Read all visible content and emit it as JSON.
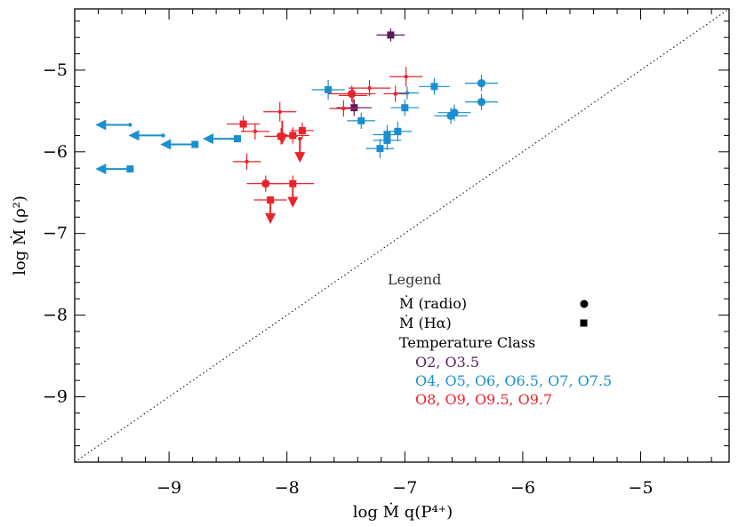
{
  "chart_data": {
    "type": "scatter",
    "title": "",
    "xlabel": "log Ṁ q(P⁴⁺)",
    "ylabel": "log Ṁ (ρ²)",
    "xlim": [
      -9.8,
      -4.25
    ],
    "ylim": [
      -9.8,
      -4.25
    ],
    "x_ticks": [
      -9,
      -8,
      -7,
      -6,
      -5
    ],
    "y_ticks": [
      -9,
      -8,
      -7,
      -6,
      -5
    ],
    "x_tick_labels": [
      "−9",
      "−8",
      "−7",
      "−6",
      "−5"
    ],
    "y_tick_labels": [
      "−9",
      "−8",
      "−7",
      "−6",
      "−5"
    ],
    "reference_line": "1:1",
    "grid": false,
    "colors": {
      "O2-O3.5": "#5a1a5e",
      "O4-O7.5": "#1a8fd0",
      "O8-O9.7": "#e8232c"
    },
    "legend": {
      "title": "Legend",
      "radio_label": "Ṁ (radio)",
      "halpha_label": "Ṁ (Hα)",
      "temperature_title": "Temperature Class",
      "classes": [
        {
          "label": "O2, O3.5",
          "color": "#5a1a5e"
        },
        {
          "label": "O4, O5, O6, O6.5, O7, O7.5",
          "color": "#1a8fd0"
        },
        {
          "label": "O8, O9, O9.5, O9.7",
          "color": "#e8232c"
        }
      ]
    },
    "points": [
      {
        "x": -7.12,
        "y": -4.57,
        "cls": "O2-O3.5",
        "marker": "square",
        "size": "large",
        "xerr": 0.12,
        "yerr": 0.08
      },
      {
        "x": -7.43,
        "y": -5.46,
        "cls": "O2-O3.5",
        "marker": "square",
        "size": "large",
        "xerr": 0.15,
        "yerr": 0.1
      },
      {
        "x": -9.33,
        "y": -5.67,
        "cls": "O4-O7.5",
        "marker": "circle",
        "size": "small",
        "limit": "left"
      },
      {
        "x": -9.05,
        "y": -5.8,
        "cls": "O4-O7.5",
        "marker": "circle",
        "size": "small",
        "limit": "left"
      },
      {
        "x": -8.78,
        "y": -5.91,
        "cls": "O4-O7.5",
        "marker": "square",
        "size": "large",
        "limit": "left"
      },
      {
        "x": -8.42,
        "y": -5.84,
        "cls": "O4-O7.5",
        "marker": "square",
        "size": "large",
        "limit": "left"
      },
      {
        "x": -9.33,
        "y": -6.21,
        "cls": "O4-O7.5",
        "marker": "square",
        "size": "large",
        "limit": "left"
      },
      {
        "x": -7.65,
        "y": -5.24,
        "cls": "O4-O7.5",
        "marker": "square",
        "size": "large",
        "xerr": 0.14,
        "yerr": 0.12
      },
      {
        "x": -7.37,
        "y": -5.62,
        "cls": "O4-O7.5",
        "marker": "square",
        "size": "large",
        "xerr": 0.12,
        "yerr": 0.1
      },
      {
        "x": -7.0,
        "y": -5.46,
        "cls": "O4-O7.5",
        "marker": "square",
        "size": "large",
        "xerr": 0.12,
        "yerr": 0.1
      },
      {
        "x": -6.98,
        "y": -5.28,
        "cls": "O4-O7.5",
        "marker": "circle",
        "size": "small",
        "xerr": 0.1,
        "yerr": 0.08
      },
      {
        "x": -6.75,
        "y": -5.2,
        "cls": "O4-O7.5",
        "marker": "square",
        "size": "large",
        "xerr": 0.13,
        "yerr": 0.1
      },
      {
        "x": -7.06,
        "y": -5.75,
        "cls": "O4-O7.5",
        "marker": "square",
        "size": "large",
        "xerr": 0.12,
        "yerr": 0.12
      },
      {
        "x": -7.15,
        "y": -5.79,
        "cls": "O4-O7.5",
        "marker": "square",
        "size": "large",
        "xerr": 0.12,
        "yerr": 0.12
      },
      {
        "x": -7.15,
        "y": -5.86,
        "cls": "O4-O7.5",
        "marker": "square",
        "size": "large",
        "xerr": 0.12,
        "yerr": 0.12
      },
      {
        "x": -7.21,
        "y": -5.96,
        "cls": "O4-O7.5",
        "marker": "square",
        "size": "large",
        "xerr": 0.12,
        "yerr": 0.12
      },
      {
        "x": -6.35,
        "y": -5.16,
        "cls": "O4-O7.5",
        "marker": "circle",
        "size": "large",
        "xerr": 0.14,
        "yerr": 0.1
      },
      {
        "x": -6.35,
        "y": -5.39,
        "cls": "O4-O7.5",
        "marker": "circle",
        "size": "large",
        "xerr": 0.14,
        "yerr": 0.1
      },
      {
        "x": -6.58,
        "y": -5.52,
        "cls": "O4-O7.5",
        "marker": "circle",
        "size": "large",
        "xerr": 0.14,
        "yerr": 0.1
      },
      {
        "x": -6.61,
        "y": -5.56,
        "cls": "O4-O7.5",
        "marker": "circle",
        "size": "large",
        "xerr": 0.14,
        "yerr": 0.1
      },
      {
        "x": -8.37,
        "y": -5.66,
        "cls": "O8-O9.7",
        "marker": "square",
        "size": "large",
        "xerr": 0.14,
        "yerr": 0.1
      },
      {
        "x": -8.27,
        "y": -5.75,
        "cls": "O8-O9.7",
        "marker": "circle",
        "size": "small",
        "xerr": 0.12,
        "yerr": 0.1
      },
      {
        "x": -8.06,
        "y": -5.51,
        "cls": "O8-O9.7",
        "marker": "circle",
        "size": "small",
        "xerr": 0.14,
        "yerr": 0.12
      },
      {
        "x": -8.05,
        "y": -5.81,
        "cls": "O8-O9.7",
        "marker": "square",
        "size": "large",
        "xerr": 0.14,
        "yerr": 0.1
      },
      {
        "x": -8.04,
        "y": -5.62,
        "cls": "O8-O9.7",
        "marker": "none",
        "limit": "down"
      },
      {
        "x": -7.95,
        "y": -5.8,
        "cls": "O8-O9.7",
        "marker": "square",
        "size": "large",
        "xerr": 0.14,
        "yerr": 0.1
      },
      {
        "x": -7.87,
        "y": -5.74,
        "cls": "O8-O9.7",
        "marker": "square",
        "size": "large",
        "xerr": 0.1,
        "yerr": 0.1
      },
      {
        "x": -7.89,
        "y": -5.84,
        "cls": "O8-O9.7",
        "marker": "circle",
        "size": "small",
        "limit": "down"
      },
      {
        "x": -8.34,
        "y": -6.12,
        "cls": "O8-O9.7",
        "marker": "circle",
        "size": "small",
        "xerr": 0.12,
        "yerr": 0.1
      },
      {
        "x": -8.18,
        "y": -6.39,
        "cls": "O8-O9.7",
        "marker": "circle",
        "size": "large",
        "xerr": 0.16,
        "yerr": 0.1
      },
      {
        "x": -7.95,
        "y": -6.39,
        "cls": "O8-O9.7",
        "marker": "square",
        "size": "large",
        "xerr": 0.18,
        "yerr": 0.1,
        "limit": "down"
      },
      {
        "x": -8.14,
        "y": -6.59,
        "cls": "O8-O9.7",
        "marker": "square",
        "size": "large",
        "xerr": 0.14,
        "limit": "down"
      },
      {
        "x": -7.45,
        "y": -5.29,
        "cls": "O8-O9.7",
        "marker": "circle",
        "size": "large",
        "xerr": 0.2,
        "yerr": 0.1
      },
      {
        "x": -7.44,
        "y": -5.31,
        "cls": "O8-O9.7",
        "marker": "circle",
        "size": "small",
        "xerr": 0.12,
        "yerr": 0.1
      },
      {
        "x": -7.3,
        "y": -5.22,
        "cls": "O8-O9.7",
        "marker": "circle",
        "size": "small",
        "xerr": 0.18,
        "yerr": 0.1
      },
      {
        "x": -7.52,
        "y": -5.47,
        "cls": "O8-O9.7",
        "marker": "circle",
        "size": "small",
        "xerr": 0.12,
        "yerr": 0.1
      },
      {
        "x": -7.08,
        "y": -5.29,
        "cls": "O8-O9.7",
        "marker": "circle",
        "size": "small",
        "xerr": 0.1,
        "yerr": 0.1
      },
      {
        "x": -6.99,
        "y": -5.08,
        "cls": "O8-O9.7",
        "marker": "circle",
        "size": "small",
        "xerr": 0.14,
        "yerr": 0.12
      }
    ]
  }
}
